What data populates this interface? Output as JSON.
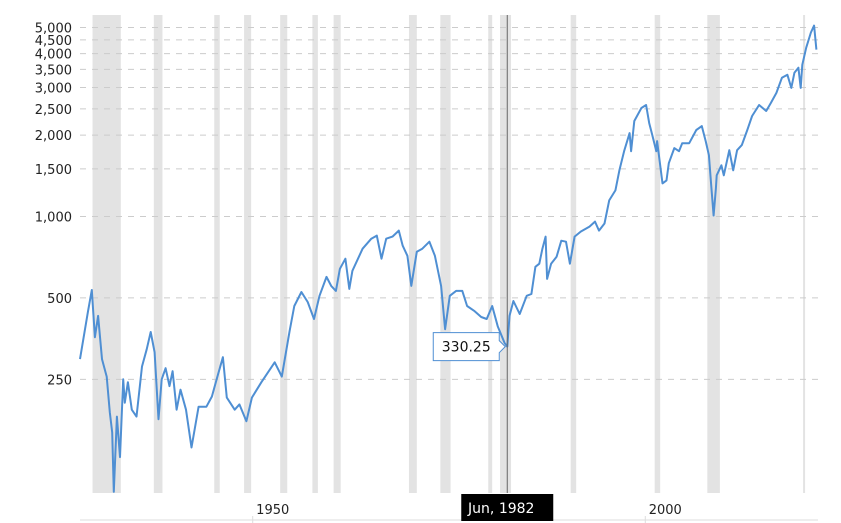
{
  "chart_data": {
    "type": "line",
    "title": "",
    "xlabel": "",
    "ylabel": "",
    "y_scale": "log",
    "xlim": [
      1928,
      2022
    ],
    "ylim": [
      95,
      5560
    ],
    "grid": "horizontal dashed",
    "line_color": "#4f8fd3",
    "recession_color": "#e3e3e3",
    "y_ticks": [
      {
        "value": 250,
        "label": "250"
      },
      {
        "value": 500,
        "label": "500"
      },
      {
        "value": 1000,
        "label": "1,000"
      },
      {
        "value": 1500,
        "label": "1,500"
      },
      {
        "value": 2000,
        "label": "2,000"
      },
      {
        "value": 2500,
        "label": "2,500"
      },
      {
        "value": 3000,
        "label": "3,000"
      },
      {
        "value": 3500,
        "label": "3,500"
      },
      {
        "value": 4000,
        "label": "4,000"
      },
      {
        "value": 4500,
        "label": "4,500"
      },
      {
        "value": 5000,
        "label": "5,000"
      }
    ],
    "x_ticks": [
      {
        "value": 1950,
        "label": "1950"
      },
      {
        "value": 2000,
        "label": "2000"
      }
    ],
    "recessions": [
      [
        1929.6,
        1933.2
      ],
      [
        1937.4,
        1938.5
      ],
      [
        1945.1,
        1945.8
      ],
      [
        1948.9,
        1949.8
      ],
      [
        1953.5,
        1954.4
      ],
      [
        1957.6,
        1958.3
      ],
      [
        1960.3,
        1961.2
      ],
      [
        1969.9,
        1970.9
      ],
      [
        1973.9,
        1975.2
      ],
      [
        1980.0,
        1980.5
      ],
      [
        1981.5,
        1982.9
      ],
      [
        1990.5,
        1991.2
      ],
      [
        2001.2,
        2001.9
      ],
      [
        2007.9,
        2009.5
      ],
      [
        2020.1,
        2020.3
      ]
    ],
    "series": [
      {
        "x": [
          1928.0,
          1929.0,
          1929.5,
          1929.9,
          1930.3,
          1930.8,
          1931.4,
          1931.8,
          1932.1,
          1932.3,
          1932.7,
          1933.1,
          1933.5,
          1933.7,
          1934.1,
          1934.6,
          1935.2,
          1935.9,
          1936.5,
          1937.0,
          1937.5,
          1938.0,
          1938.4,
          1938.9,
          1939.4,
          1939.8,
          1940.3,
          1940.8,
          1941.5,
          1942.2,
          1943.1,
          1944.1,
          1944.8,
          1945.5,
          1946.2,
          1946.7,
          1947.7,
          1948.3,
          1949.2,
          1949.9,
          1951.1,
          1952.8,
          1953.7,
          1954.7,
          1955.3,
          1956.2,
          1957.0,
          1957.8,
          1958.5,
          1959.4,
          1960.0,
          1960.6,
          1961.1,
          1961.8,
          1962.3,
          1962.7,
          1964.0,
          1965.1,
          1965.8,
          1966.4,
          1967.0,
          1967.8,
          1968.6,
          1969.1,
          1969.7,
          1970.2,
          1970.9,
          1971.6,
          1972.5,
          1973.2,
          1974.0,
          1974.5,
          1975.1,
          1975.9,
          1976.7,
          1977.3,
          1978.2,
          1979.1,
          1979.8,
          1980.5,
          1981.2,
          1982.1,
          1982.42,
          1982.7,
          1983.2,
          1984.0,
          1984.9,
          1985.5,
          1986.0,
          1986.5,
          1986.9,
          1987.3,
          1987.5,
          1988.0,
          1988.7,
          1989.3,
          1989.9,
          1990.4,
          1991.0,
          1991.8,
          1992.9,
          1993.6,
          1994.1,
          1994.8,
          1995.4,
          1996.2,
          1996.7,
          1997.3,
          1998.0,
          1998.2,
          1998.6,
          1999.5,
          2000.1,
          2000.5,
          2000.9,
          2001.4,
          2001.5,
          2002.2,
          2002.7,
          2003.0,
          2003.7,
          2004.3,
          2004.7,
          2005.6,
          2006.5,
          2007.2,
          2007.7,
          2008.1,
          2008.4,
          2008.7,
          2009.0,
          2009.1,
          2009.7,
          2010.0,
          2010.7,
          2011.2,
          2011.7,
          2012.3,
          2013.0,
          2013.6,
          2014.5,
          2015.4,
          2016.0,
          2016.7,
          2017.4,
          2018.1,
          2018.6,
          2019.0,
          2019.5,
          2019.8,
          2020.0,
          2020.5,
          2021.1,
          2021.5,
          2021.8
        ],
        "values": [
          297,
          444,
          535,
          358,
          429,
          297,
          256,
          189,
          159,
          96,
          182,
          129,
          250,
          205,
          244,
          193,
          182,
          279,
          323,
          374,
          315,
          178,
          250,
          275,
          236,
          268,
          193,
          229,
          193,
          140,
          198,
          198,
          216,
          256,
          302,
          214,
          193,
          202,
          175,
          214,
          244,
          289,
          256,
          377,
          467,
          526,
          483,
          418,
          509,
          598,
          554,
          531,
          641,
          698,
          540,
          630,
          760,
          828,
          850,
          698,
          828,
          843,
          887,
          780,
          716,
          554,
          741,
          760,
          807,
          716,
          554,
          383,
          509,
          531,
          531,
          467,
          448,
          425,
          418,
          467,
          393,
          340,
          330.25,
          429,
          487,
          436,
          509,
          517,
          652,
          669,
          760,
          843,
          588,
          669,
          710,
          814,
          807,
          669,
          843,
          880,
          918,
          958,
          887,
          942,
          1147,
          1249,
          1482,
          1744,
          2035,
          1744,
          2255,
          2520,
          2585,
          2216,
          2000,
          1744,
          1900,
          1326,
          1360,
          1574,
          1790,
          1744,
          1867,
          1867,
          2088,
          2160,
          1900,
          1686,
          1304,
          1009,
          1271,
          1420,
          1547,
          1420,
          1759,
          1482,
          1759,
          1836,
          2088,
          2354,
          2585,
          2456,
          2630,
          2865,
          3258,
          3342,
          2990,
          3400,
          3550,
          2990,
          3640,
          4210,
          4790,
          5080,
          4140
        ]
      }
    ],
    "crosshair": {
      "date_label": "Jun, 1982",
      "x": 1982.42,
      "value": 330.25,
      "value_label": "330.25"
    }
  }
}
